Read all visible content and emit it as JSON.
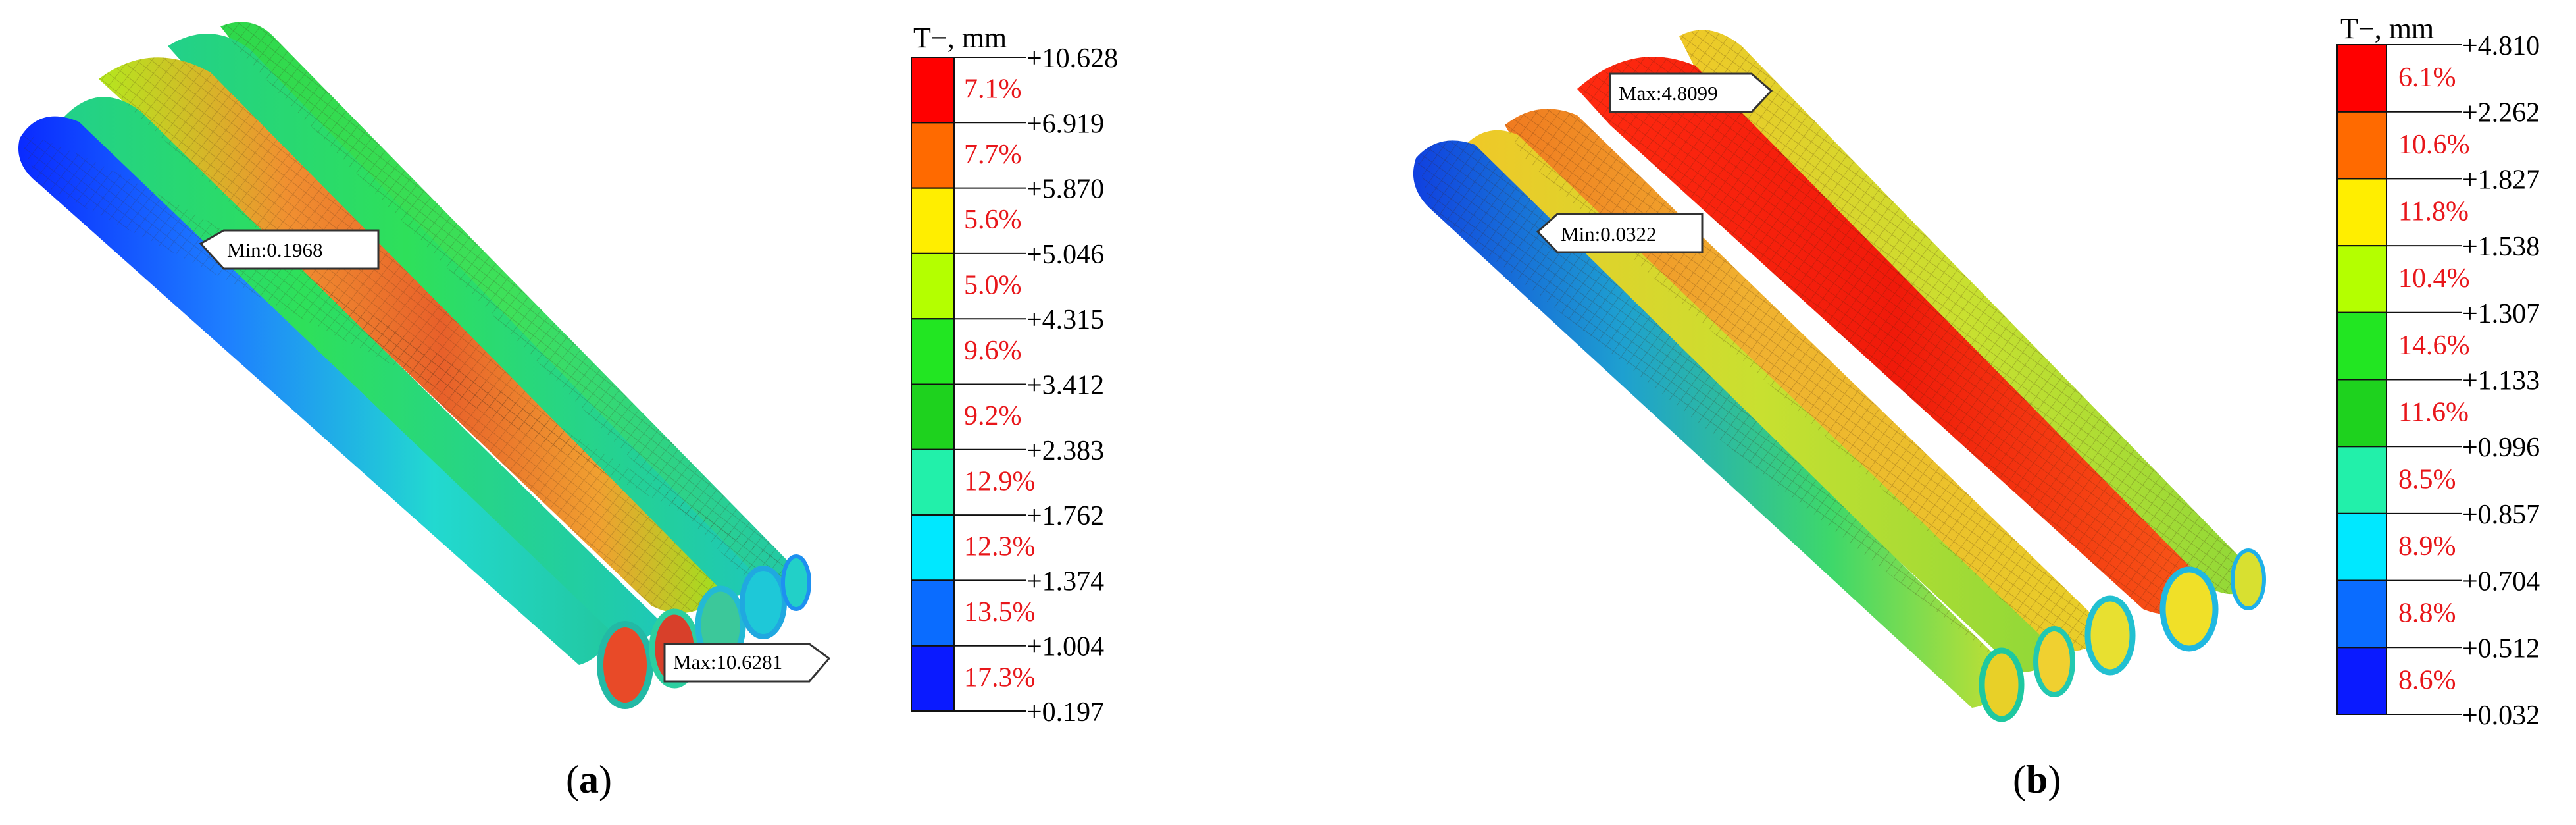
{
  "panels": [
    {
      "id": "a",
      "caption": "a",
      "label_min": "Min:0.1968",
      "label_max": "Max:10.6281",
      "legend": {
        "title": "T−, mm",
        "colors": [
          "#ff0000",
          "#ff6a00",
          "#ffee00",
          "#b4ff00",
          "#22e622",
          "#1ed21e",
          "#22f0aa",
          "#00e8ff",
          "#0a6cff",
          "#0a1aff"
        ],
        "ticks": [
          "+10.628",
          "+6.919",
          "+5.870",
          "+5.046",
          "+4.315",
          "+3.412",
          "+2.383",
          "+1.762",
          "+1.374",
          "+1.004",
          "+0.197"
        ],
        "percents": [
          "7.1%",
          "7.7%",
          "5.6%",
          "5.0%",
          "9.6%",
          "9.2%",
          "12.9%",
          "12.3%",
          "13.5%",
          "17.3%"
        ]
      }
    },
    {
      "id": "b",
      "caption": "b",
      "label_min": "Min:0.0322",
      "label_max": "Max:4.8099",
      "legend": {
        "title": "T−, mm",
        "colors": [
          "#ff0000",
          "#ff6a00",
          "#ffee00",
          "#b4ff00",
          "#22e622",
          "#1ed21e",
          "#22f0aa",
          "#00e8ff",
          "#0a6cff",
          "#0a1aff"
        ],
        "ticks": [
          "+4.810",
          "+2.262",
          "+1.827",
          "+1.538",
          "+1.307",
          "+1.133",
          "+0.996",
          "+0.857",
          "+0.704",
          "+0.512",
          "+0.032"
        ],
        "percents": [
          "6.1%",
          "10.6%",
          "11.8%",
          "10.4%",
          "14.6%",
          "11.6%",
          "8.5%",
          "8.9%",
          "8.8%",
          "8.6%"
        ]
      }
    }
  ]
}
